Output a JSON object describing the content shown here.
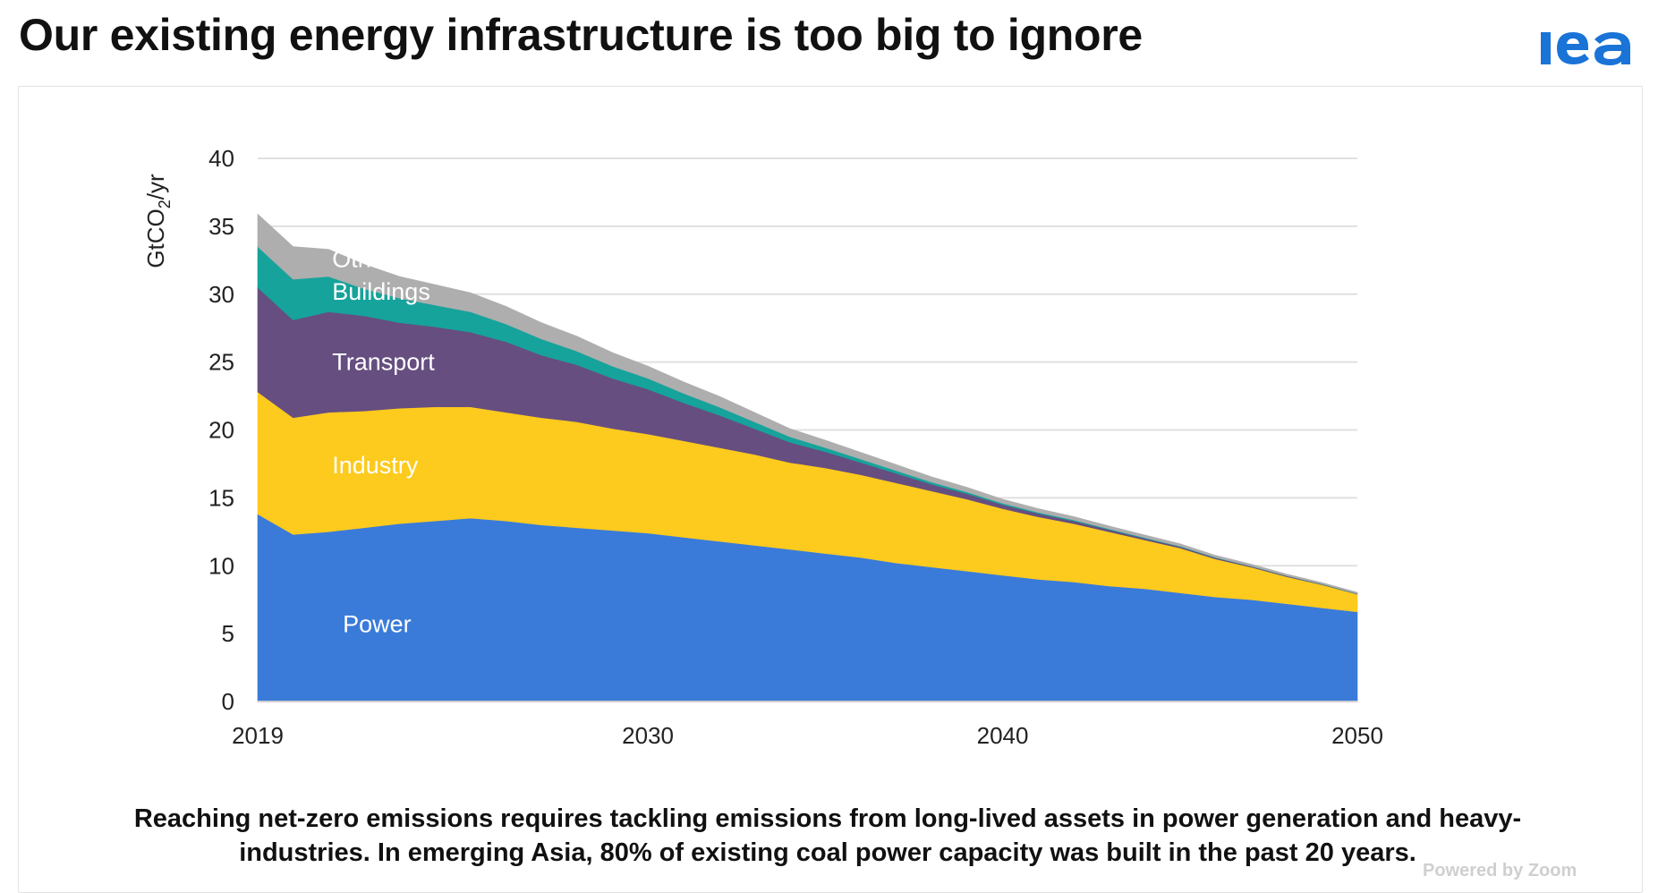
{
  "slide": {
    "title": "Our existing energy infrastructure is too big to ignore",
    "logo_text": "iea",
    "caption_line1": "Reaching net-zero emissions requires tackling emissions from long-lived assets in power generation and heavy-",
    "caption_line2": "industries. In emerging Asia, 80% of existing coal power capacity was built in the past 20 years.",
    "watermark": "Powered by Zoom"
  },
  "colors": {
    "power": "#3a7bd9",
    "industry": "#fdca1e",
    "transport": "#664e80",
    "buildings": "#16a39b",
    "other": "#aeaeae",
    "logo": "#1a73d6",
    "grid": "#e0e0e0",
    "axis_text": "#222222"
  },
  "chart_data": {
    "type": "area",
    "stacked": true,
    "ylabel": "GtCO2/yr",
    "ylim": [
      0,
      40
    ],
    "yticks": [
      0,
      5,
      10,
      15,
      20,
      25,
      30,
      35,
      40
    ],
    "xlim": [
      2019,
      2050
    ],
    "xticks": [
      2019,
      2030,
      2040,
      2050
    ],
    "x": [
      2019,
      2020,
      2021,
      2022,
      2023,
      2024,
      2025,
      2026,
      2027,
      2028,
      2029,
      2030,
      2031,
      2032,
      2033,
      2034,
      2035,
      2036,
      2037,
      2038,
      2039,
      2040,
      2041,
      2042,
      2043,
      2044,
      2045,
      2046,
      2047,
      2048,
      2049,
      2050
    ],
    "series": [
      {
        "name": "Power",
        "color_key": "power",
        "values": [
          13.8,
          12.3,
          12.5,
          12.8,
          13.1,
          13.3,
          13.5,
          13.3,
          13.0,
          12.8,
          12.6,
          12.4,
          12.1,
          11.8,
          11.5,
          11.2,
          10.9,
          10.6,
          10.2,
          9.9,
          9.6,
          9.3,
          9.0,
          8.8,
          8.5,
          8.3,
          8.0,
          7.7,
          7.5,
          7.2,
          6.9,
          6.6
        ]
      },
      {
        "name": "Industry",
        "color_key": "industry",
        "values": [
          9.0,
          8.6,
          8.8,
          8.6,
          8.5,
          8.4,
          8.2,
          8.0,
          7.9,
          7.8,
          7.5,
          7.3,
          7.1,
          6.9,
          6.7,
          6.4,
          6.3,
          6.1,
          5.9,
          5.6,
          5.3,
          4.9,
          4.6,
          4.3,
          4.0,
          3.6,
          3.3,
          2.8,
          2.4,
          2.0,
          1.7,
          1.3
        ]
      },
      {
        "name": "Transport",
        "color_key": "transport",
        "values": [
          7.7,
          7.2,
          7.4,
          7.0,
          6.3,
          5.9,
          5.5,
          5.2,
          4.6,
          4.2,
          3.7,
          3.3,
          2.8,
          2.4,
          1.9,
          1.5,
          1.2,
          0.9,
          0.7,
          0.5,
          0.4,
          0.3,
          0.25,
          0.2,
          0.15,
          0.12,
          0.1,
          0.08,
          0.06,
          0.05,
          0.04,
          0.03
        ]
      },
      {
        "name": "Buildings",
        "color_key": "buildings",
        "values": [
          3.0,
          3.0,
          2.6,
          2.0,
          1.8,
          1.6,
          1.5,
          1.3,
          1.2,
          1.0,
          0.9,
          0.8,
          0.7,
          0.6,
          0.5,
          0.4,
          0.3,
          0.25,
          0.2,
          0.15,
          0.12,
          0.1,
          0.08,
          0.07,
          0.06,
          0.05,
          0.04,
          0.03,
          0.02,
          0.02,
          0.02,
          0.01
        ]
      },
      {
        "name": "Other",
        "color_key": "other",
        "values": [
          2.4,
          2.4,
          2.0,
          1.8,
          1.6,
          1.5,
          1.4,
          1.3,
          1.2,
          1.1,
          1.0,
          0.9,
          0.85,
          0.8,
          0.7,
          0.6,
          0.55,
          0.5,
          0.45,
          0.4,
          0.35,
          0.3,
          0.28,
          0.25,
          0.22,
          0.2,
          0.18,
          0.16,
          0.14,
          0.12,
          0.1,
          0.1
        ]
      }
    ],
    "area_labels": [
      {
        "series": "Other",
        "text": "Other",
        "x": 2021.1,
        "y": 32.0
      },
      {
        "series": "Buildings",
        "text": "Buildings",
        "x": 2021.1,
        "y": 29.6
      },
      {
        "series": "Transport",
        "text": "Transport",
        "x": 2021.1,
        "y": 24.4
      },
      {
        "series": "Industry",
        "text": "Industry",
        "x": 2021.1,
        "y": 16.8
      },
      {
        "series": "Power",
        "text": "Power",
        "x": 2021.4,
        "y": 5.1
      }
    ]
  }
}
